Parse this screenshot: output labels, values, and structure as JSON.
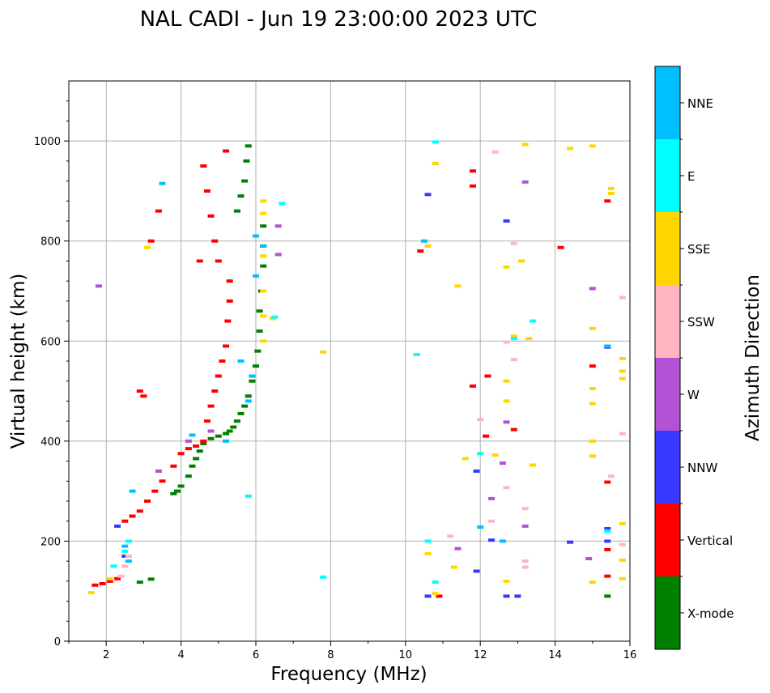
{
  "chart_data": {
    "type": "scatter",
    "title": "NAL CADI - Jun 19 23:00:00 2023 UTC",
    "xlabel": "Frequency (MHz)",
    "ylabel": "Virtual height (km)",
    "xlim": [
      1,
      16
    ],
    "ylim": [
      0,
      1120
    ],
    "xticks": [
      2,
      4,
      6,
      8,
      10,
      12,
      14,
      16
    ],
    "yticks": [
      0,
      200,
      400,
      600,
      800,
      1000
    ],
    "grid": true,
    "colorbar": {
      "label": "Azimuth Direction",
      "position": "right",
      "categories": [
        {
          "name": "X-mode",
          "color": "#008000"
        },
        {
          "name": "Vertical",
          "color": "#ff0000"
        },
        {
          "name": "NNW",
          "color": "#3838ff"
        },
        {
          "name": "W",
          "color": "#b452d6"
        },
        {
          "name": "SSW",
          "color": "#ffb6c1"
        },
        {
          "name": "SSE",
          "color": "#ffd700"
        },
        {
          "name": "E",
          "color": "#00ffff"
        },
        {
          "name": "NNE",
          "color": "#00bfff"
        }
      ]
    },
    "series": [
      {
        "name": "X-mode",
        "color": "#008000",
        "points": [
          [
            3.2,
            124
          ],
          [
            3.8,
            295
          ],
          [
            3.9,
            300
          ],
          [
            4.0,
            310
          ],
          [
            4.2,
            330
          ],
          [
            4.3,
            350
          ],
          [
            4.4,
            365
          ],
          [
            4.5,
            380
          ],
          [
            4.6,
            395
          ],
          [
            4.8,
            405
          ],
          [
            5.0,
            410
          ],
          [
            5.2,
            415
          ],
          [
            5.3,
            420
          ],
          [
            5.4,
            428
          ],
          [
            5.5,
            440
          ],
          [
            5.6,
            455
          ],
          [
            5.7,
            470
          ],
          [
            5.8,
            490
          ],
          [
            5.9,
            520
          ],
          [
            6.0,
            550
          ],
          [
            6.05,
            580
          ],
          [
            6.1,
            620
          ],
          [
            6.1,
            660
          ],
          [
            6.15,
            700
          ],
          [
            6.2,
            750
          ],
          [
            6.2,
            790
          ],
          [
            6.2,
            830
          ],
          [
            5.5,
            860
          ],
          [
            5.6,
            890
          ],
          [
            5.7,
            920
          ],
          [
            5.75,
            960
          ],
          [
            5.8,
            990
          ],
          [
            2.9,
            118
          ],
          [
            15.4,
            90
          ]
        ]
      },
      {
        "name": "Vertical",
        "color": "#ff0000",
        "points": [
          [
            1.7,
            112
          ],
          [
            1.9,
            115
          ],
          [
            2.1,
            120
          ],
          [
            2.3,
            125
          ],
          [
            2.5,
            240
          ],
          [
            2.7,
            250
          ],
          [
            2.9,
            260
          ],
          [
            3.1,
            280
          ],
          [
            3.3,
            300
          ],
          [
            3.5,
            320
          ],
          [
            3.8,
            350
          ],
          [
            4.0,
            375
          ],
          [
            4.2,
            385
          ],
          [
            4.4,
            390
          ],
          [
            4.6,
            400
          ],
          [
            4.7,
            440
          ],
          [
            4.8,
            470
          ],
          [
            4.9,
            500
          ],
          [
            5.0,
            530
          ],
          [
            5.1,
            560
          ],
          [
            5.2,
            590
          ],
          [
            5.25,
            640
          ],
          [
            5.3,
            680
          ],
          [
            5.3,
            720
          ],
          [
            5.0,
            760
          ],
          [
            4.9,
            800
          ],
          [
            4.8,
            850
          ],
          [
            4.7,
            900
          ],
          [
            4.6,
            950
          ],
          [
            5.2,
            980
          ],
          [
            3.4,
            860
          ],
          [
            3.2,
            800
          ],
          [
            3.0,
            490
          ],
          [
            4.5,
            760
          ],
          [
            2.9,
            500
          ],
          [
            12.2,
            530
          ],
          [
            12.15,
            410
          ],
          [
            11.8,
            510
          ],
          [
            11.8,
            940
          ],
          [
            11.8,
            910
          ],
          [
            10.4,
            780
          ],
          [
            14.15,
            787
          ],
          [
            15.4,
            880
          ],
          [
            15.4,
            318
          ],
          [
            15.4,
            183
          ],
          [
            15.4,
            130
          ],
          [
            15.0,
            550
          ],
          [
            10.9,
            90
          ],
          [
            12.9,
            423
          ]
        ]
      },
      {
        "name": "NNW",
        "color": "#3838ff",
        "points": [
          [
            2.3,
            230
          ],
          [
            2.5,
            170
          ],
          [
            12.7,
            840
          ],
          [
            12.7,
            90
          ],
          [
            13.0,
            90
          ],
          [
            10.6,
            893
          ],
          [
            10.6,
            90
          ],
          [
            12.3,
            202
          ],
          [
            11.9,
            340
          ],
          [
            11.9,
            140
          ],
          [
            15.4,
            588
          ],
          [
            15.4,
            225
          ],
          [
            15.4,
            200
          ],
          [
            14.4,
            198
          ]
        ]
      },
      {
        "name": "W",
        "color": "#b452d6",
        "points": [
          [
            1.8,
            710
          ],
          [
            3.4,
            340
          ],
          [
            4.2,
            400
          ],
          [
            4.8,
            420
          ],
          [
            6.6,
            830
          ],
          [
            6.6,
            773
          ],
          [
            13.2,
            918
          ],
          [
            12.7,
            438
          ],
          [
            13.2,
            230
          ],
          [
            15.0,
            705
          ],
          [
            14.9,
            165
          ],
          [
            12.3,
            285
          ],
          [
            11.4,
            185
          ],
          [
            12.6,
            356
          ]
        ]
      },
      {
        "name": "SSW",
        "color": "#ffb6c1",
        "points": [
          [
            2.5,
            150
          ],
          [
            2.6,
            170
          ],
          [
            2.4,
            130
          ],
          [
            12.4,
            978
          ],
          [
            12.9,
            795
          ],
          [
            12.7,
            598
          ],
          [
            12.9,
            563
          ],
          [
            12.3,
            240
          ],
          [
            12.7,
            307
          ],
          [
            13.2,
            265
          ],
          [
            13.2,
            160
          ],
          [
            13.2,
            148
          ],
          [
            11.2,
            210
          ],
          [
            15.8,
            687
          ],
          [
            15.8,
            415
          ],
          [
            15.5,
            330
          ],
          [
            15.8,
            193
          ],
          [
            12.0,
            443
          ]
        ]
      },
      {
        "name": "SSE",
        "color": "#ffd700",
        "points": [
          [
            6.2,
            880
          ],
          [
            6.2,
            855
          ],
          [
            6.2,
            770
          ],
          [
            6.2,
            700
          ],
          [
            6.2,
            650
          ],
          [
            6.2,
            600
          ],
          [
            6.45,
            645
          ],
          [
            3.1,
            787
          ],
          [
            10.6,
            790
          ],
          [
            10.6,
            175
          ],
          [
            10.8,
            955
          ],
          [
            13.2,
            993
          ],
          [
            14.4,
            985
          ],
          [
            15.0,
            990
          ],
          [
            15.5,
            905
          ],
          [
            15.5,
            895
          ],
          [
            13.1,
            760
          ],
          [
            12.7,
            748
          ],
          [
            13.3,
            605
          ],
          [
            12.9,
            610
          ],
          [
            12.7,
            520
          ],
          [
            12.7,
            480
          ],
          [
            15.0,
            625
          ],
          [
            15.0,
            505
          ],
          [
            15.0,
            475
          ],
          [
            15.0,
            400
          ],
          [
            15.0,
            370
          ],
          [
            15.8,
            565
          ],
          [
            15.8,
            540
          ],
          [
            15.8,
            525
          ],
          [
            15.8,
            235
          ],
          [
            15.8,
            162
          ],
          [
            15.8,
            125
          ],
          [
            15.0,
            118
          ],
          [
            11.3,
            148
          ],
          [
            11.6,
            365
          ],
          [
            13.4,
            352
          ],
          [
            12.7,
            120
          ],
          [
            7.8,
            578
          ],
          [
            11.4,
            710
          ],
          [
            10.8,
            95
          ],
          [
            1.6,
            97
          ],
          [
            2.1,
            125
          ],
          [
            12.4,
            372
          ]
        ]
      },
      {
        "name": "E",
        "color": "#00ffff",
        "points": [
          [
            2.6,
            200
          ],
          [
            2.5,
            180
          ],
          [
            6.7,
            875
          ],
          [
            6.5,
            648
          ],
          [
            10.8,
            998
          ],
          [
            10.3,
            573
          ],
          [
            10.8,
            118
          ],
          [
            10.6,
            200
          ],
          [
            12.9,
            605
          ],
          [
            13.4,
            640
          ],
          [
            12.0,
            375
          ],
          [
            7.8,
            128
          ],
          [
            2.2,
            150
          ],
          [
            5.8,
            290
          ],
          [
            15.4,
            220
          ]
        ]
      },
      {
        "name": "NNE",
        "color": "#00bfff",
        "points": [
          [
            2.6,
            160
          ],
          [
            2.5,
            190
          ],
          [
            3.5,
            915
          ],
          [
            5.9,
            530
          ],
          [
            6.0,
            810
          ],
          [
            5.6,
            560
          ],
          [
            5.8,
            480
          ],
          [
            6.2,
            790
          ],
          [
            6.0,
            730
          ],
          [
            2.7,
            300
          ],
          [
            4.3,
            412
          ],
          [
            5.2,
            400
          ],
          [
            10.5,
            800
          ],
          [
            12.0,
            228
          ],
          [
            12.6,
            200
          ],
          [
            15.4,
            590
          ]
        ]
      }
    ]
  }
}
